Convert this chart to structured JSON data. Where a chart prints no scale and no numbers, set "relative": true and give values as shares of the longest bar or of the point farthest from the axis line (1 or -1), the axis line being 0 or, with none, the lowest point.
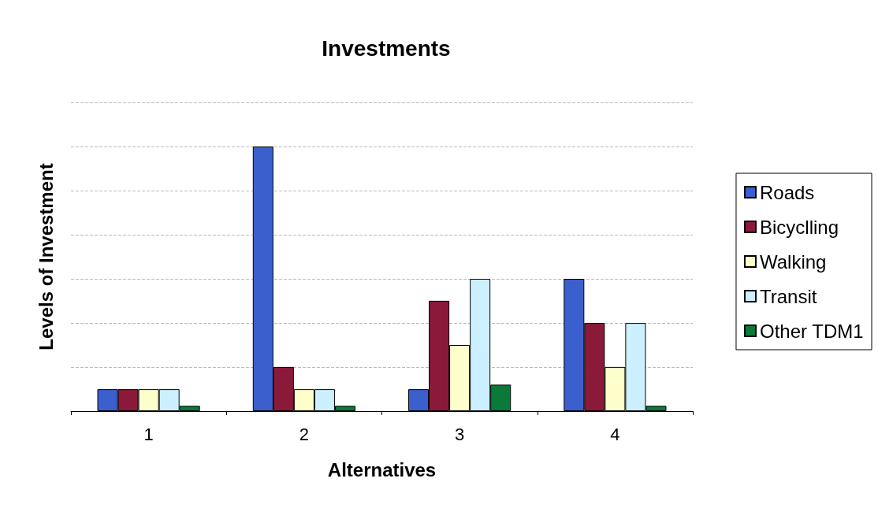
{
  "chart_data": {
    "type": "bar",
    "title": "Investments",
    "xlabel": "Alternatives",
    "ylabel": "Levels of Investment",
    "categories": [
      "1",
      "2",
      "3",
      "4"
    ],
    "relative": true,
    "grid": true,
    "legend": "right",
    "series": [
      {
        "name": "Roads",
        "color": "#3b5fcd",
        "values": [
          0.083,
          1,
          0.083,
          0.5
        ]
      },
      {
        "name": "Bicyclling",
        "color": "#8b1a3a",
        "values": [
          0.083,
          0.167,
          0.417,
          0.333
        ]
      },
      {
        "name": "Walking",
        "color": "#ffffcc",
        "values": [
          0.083,
          0.083,
          0.25,
          0.167
        ]
      },
      {
        "name": "Transit",
        "color": "#ccf0ff",
        "values": [
          0.083,
          0.083,
          0.5,
          0.333
        ]
      },
      {
        "name": "Other TDM1",
        "color": "#0a7a3a",
        "values": [
          0.02,
          0.02,
          0.1,
          0.02
        ]
      }
    ]
  }
}
